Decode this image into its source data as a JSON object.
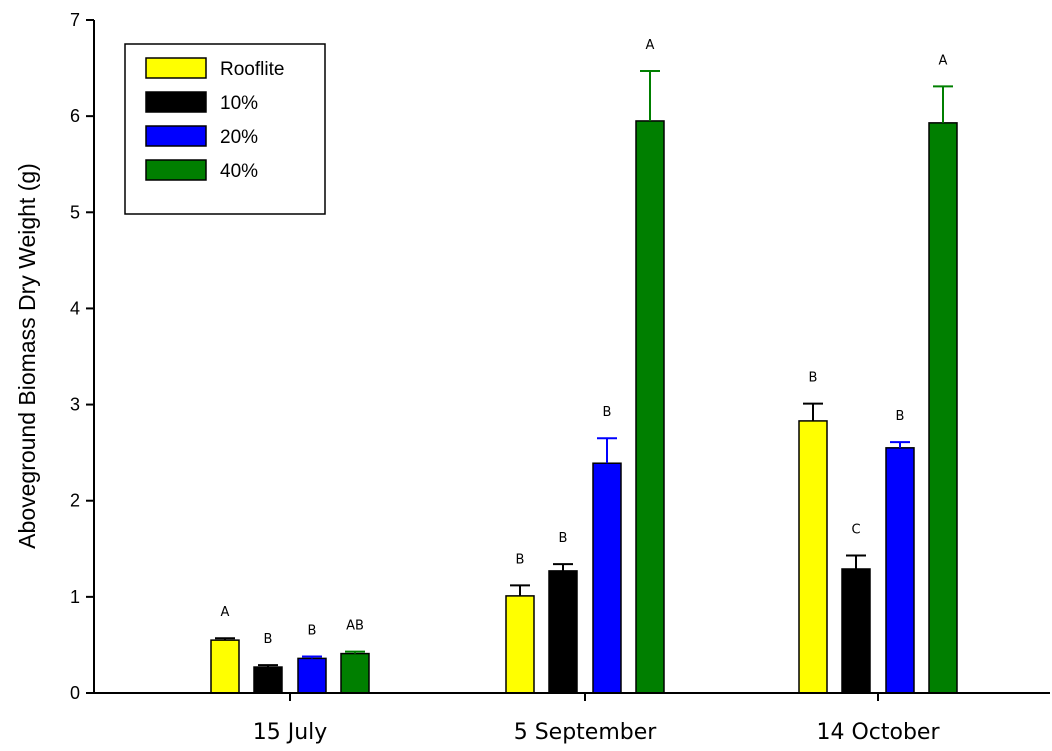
{
  "chart_data": {
    "type": "bar",
    "ylabel": "Aboveground Biomass Dry Weight (g)",
    "xlabel": "",
    "ylim": [
      0,
      7
    ],
    "yticks": [
      "0",
      "1",
      "2",
      "3",
      "4",
      "5",
      "6",
      "7"
    ],
    "categories": [
      "15 July",
      "5 September",
      "14 October"
    ],
    "legend_position": "top-left",
    "series": [
      {
        "name": "Rooflite",
        "color": "#ffff00",
        "values": [
          0.55,
          1.01,
          2.83
        ],
        "errors": [
          0.02,
          0.11,
          0.18
        ],
        "labels": [
          "A",
          "B",
          "B"
        ]
      },
      {
        "name": "10%",
        "color": "#000000",
        "values": [
          0.27,
          1.27,
          1.29
        ],
        "errors": [
          0.02,
          0.07,
          0.14
        ],
        "labels": [
          "B",
          "B",
          "C"
        ]
      },
      {
        "name": "20%",
        "color": "#0000ff",
        "values": [
          0.36,
          2.39,
          2.55
        ],
        "errors": [
          0.02,
          0.26,
          0.06
        ],
        "labels": [
          "B",
          "B",
          "B"
        ]
      },
      {
        "name": "40%",
        "color": "#007f00",
        "values": [
          0.41,
          5.95,
          5.93
        ],
        "errors": [
          0.02,
          0.52,
          0.38
        ],
        "labels": [
          "AB",
          "A",
          "A"
        ]
      }
    ]
  }
}
